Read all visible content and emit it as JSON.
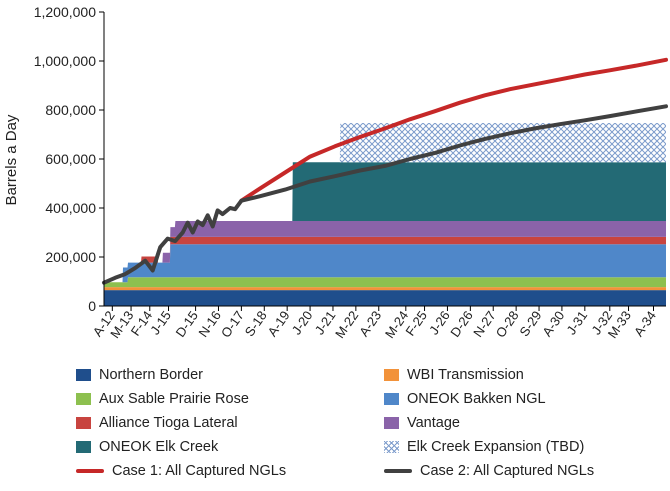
{
  "chart_data": {
    "type": "area",
    "ylabel": "Barrels a Day",
    "xlabel": "",
    "ylim": [
      0,
      1200000
    ],
    "yticks": [
      0,
      200000,
      400000,
      600000,
      800000,
      1000000,
      1200000
    ],
    "ytick_labels": [
      "0",
      "200,000",
      "400,000",
      "600,000",
      "800,000",
      "1,000,000",
      "1,200,000"
    ],
    "x_range_years": [
      2012.25,
      2034.75
    ],
    "xtick_labels": [
      "A-12",
      "M-13",
      "F-14",
      "J-15",
      "D-15",
      "N-16",
      "O-17",
      "S-18",
      "A-19",
      "J-20",
      "J-21",
      "M-22",
      "A-23",
      "M-24",
      "F-25",
      "J-26",
      "D-26",
      "N-27",
      "O-28",
      "S-29",
      "A-30",
      "J-31",
      "J-32",
      "M-33",
      "A-34"
    ],
    "xtick_years": [
      2012.583,
      2013.333,
      2014.083,
      2014.833,
      2015.917,
      2016.833,
      2017.75,
      2018.667,
      2019.583,
      2020.5,
      2021.417,
      2022.333,
      2023.25,
      2024.333,
      2025.083,
      2026.0,
      2026.917,
      2027.833,
      2028.75,
      2029.667,
      2030.583,
      2031.5,
      2032.5,
      2033.25,
      2034.25
    ],
    "capacity_series": [
      {
        "name": "Northern Border",
        "color": "#1f4e8c",
        "steps": [
          [
            2012.25,
            65000
          ]
        ]
      },
      {
        "name": "WBI Transmission",
        "color": "#f2923a",
        "steps": [
          [
            2012.25,
            12000
          ]
        ]
      },
      {
        "name": "Aux Sable Prairie Rose",
        "color": "#8dc04f",
        "steps": [
          [
            2012.25,
            20000
          ],
          [
            2013.2,
            40000
          ]
        ]
      },
      {
        "name": "ONEOK Bakken NGL",
        "color": "#4f87c9",
        "steps": [
          [
            2013.0,
            60000
          ],
          [
            2014.0,
            60000
          ],
          [
            2014.9,
            135000
          ]
        ]
      },
      {
        "name": "Alliance Tioga Lateral",
        "color": "#c8443f",
        "steps": [
          [
            2013.75,
            25000
          ],
          [
            2014.4,
            0
          ],
          [
            2014.9,
            30000
          ]
        ]
      },
      {
        "name": "Vantage",
        "color": "#8a63a9",
        "steps": [
          [
            2014.6,
            40000
          ],
          [
            2015.1,
            65000
          ]
        ]
      },
      {
        "name": "ONEOK Elk Creek",
        "color": "#236a75",
        "steps": [
          [
            2019.8,
            240000
          ]
        ]
      },
      {
        "name": "Elk Creek Expansion (TBD)",
        "color": "#7d9ccc",
        "hatched": true,
        "steps": [
          [
            2021.7,
            160000
          ]
        ]
      }
    ],
    "line_series": [
      {
        "name": "Case 1: All Captured NGLs",
        "color": "#c62828",
        "x": [
          2017.75,
          2018.5,
          2019.5,
          2020.5,
          2021.5,
          2022.5,
          2023.5,
          2024.5,
          2025.5,
          2026.5,
          2027.5,
          2028.5,
          2029.5,
          2030.5,
          2031.5,
          2032.5,
          2033.5,
          2034.75
        ],
        "y": [
          430000,
          480000,
          545000,
          610000,
          652000,
          690000,
          725000,
          762000,
          795000,
          830000,
          860000,
          885000,
          905000,
          925000,
          945000,
          962000,
          980000,
          1005000
        ]
      },
      {
        "name": "Case 2: All Captured NGLs",
        "color": "#404040",
        "x": [
          2012.25,
          2012.7,
          2013.1,
          2013.5,
          2013.9,
          2014.2,
          2014.5,
          2014.8,
          2015.1,
          2015.4,
          2015.6,
          2015.8,
          2016.0,
          2016.2,
          2016.4,
          2016.6,
          2016.8,
          2017.0,
          2017.3,
          2017.5,
          2017.75,
          2018.5,
          2019.5,
          2020.5,
          2021.5,
          2022.5,
          2023.5,
          2024.5,
          2025.5,
          2026.5,
          2027.5,
          2028.5,
          2029.5,
          2030.5,
          2031.5,
          2032.5,
          2033.5,
          2034.75
        ],
        "y": [
          95000,
          115000,
          130000,
          155000,
          185000,
          145000,
          240000,
          275000,
          265000,
          300000,
          340000,
          300000,
          345000,
          330000,
          370000,
          325000,
          390000,
          375000,
          400000,
          395000,
          430000,
          448000,
          475000,
          508000,
          530000,
          553000,
          572000,
          600000,
          625000,
          655000,
          682000,
          705000,
          725000,
          742000,
          758000,
          775000,
          793000,
          815000
        ]
      }
    ]
  },
  "legend": [
    {
      "label": "Northern Border",
      "kind": "box",
      "color": "#1f4e8c"
    },
    {
      "label": "WBI Transmission",
      "kind": "box",
      "color": "#f2923a"
    },
    {
      "label": "Aux Sable Prairie Rose",
      "kind": "box",
      "color": "#8dc04f"
    },
    {
      "label": "ONEOK Bakken NGL",
      "kind": "box",
      "color": "#4f87c9"
    },
    {
      "label": "Alliance Tioga Lateral",
      "kind": "box",
      "color": "#c8443f"
    },
    {
      "label": "Vantage",
      "kind": "box",
      "color": "#8a63a9"
    },
    {
      "label": "ONEOK Elk Creek",
      "kind": "box",
      "color": "#236a75"
    },
    {
      "label": "Elk Creek Expansion (TBD)",
      "kind": "hatch",
      "color": "#7d9ccc"
    },
    {
      "label": "Case 1: All Captured NGLs",
      "kind": "line",
      "color": "#c62828"
    },
    {
      "label": "Case 2: All Captured NGLs",
      "kind": "line",
      "color": "#404040"
    }
  ]
}
